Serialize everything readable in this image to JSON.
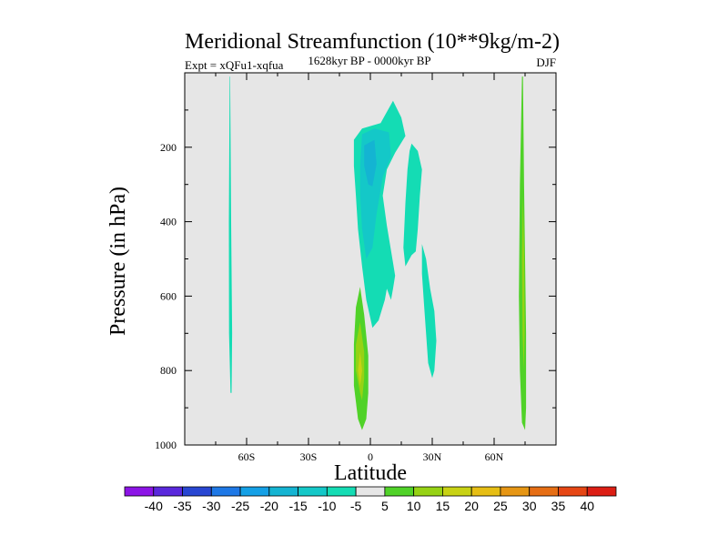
{
  "chart_data": {
    "type": "heatmap",
    "title": "Meridional Streamfunction (10**9kg/m-2)",
    "subtitle_left": "Expt = xQFu1-xqfua",
    "subtitle_center": "1628kyr BP - 0000kyr BP",
    "subtitle_right": "DJF",
    "xlabel": "Latitude",
    "ylabel": "Pressure (in hPa)",
    "xlim": [
      -90,
      90
    ],
    "ylim": [
      1000,
      0
    ],
    "x_ticks": [
      {
        "value": -60,
        "label": "60S"
      },
      {
        "value": -30,
        "label": "30S"
      },
      {
        "value": 0,
        "label": "0"
      },
      {
        "value": 30,
        "label": "30N"
      },
      {
        "value": 60,
        "label": "60N"
      }
    ],
    "y_ticks": [
      {
        "value": 200,
        "label": "200"
      },
      {
        "value": 400,
        "label": "400"
      },
      {
        "value": 600,
        "label": "600"
      },
      {
        "value": 800,
        "label": "800"
      },
      {
        "value": 1000,
        "label": "1000"
      }
    ],
    "background_color": "#e6e6e6",
    "colorbar": {
      "labels": [
        "-40",
        "-35",
        "-30",
        "-25",
        "-20",
        "-15",
        "-10",
        "-5",
        "5",
        "10",
        "15",
        "20",
        "25",
        "30",
        "35",
        "40"
      ],
      "colors": [
        "#8c14e6",
        "#5a28dc",
        "#2846d2",
        "#1e78e6",
        "#14a0e6",
        "#14b4d2",
        "#14c8c8",
        "#14dcb4",
        "#e6e6e6",
        "#50d228",
        "#96d214",
        "#c8d214",
        "#e6be14",
        "#e69614",
        "#e66e14",
        "#e64614",
        "#dc1e14"
      ]
    },
    "regions": [
      {
        "name": "sh-polar-cell",
        "level": "-5",
        "color": "#14dcb4",
        "points": [
          [
            -68,
            10
          ],
          [
            -67.5,
            400
          ],
          [
            -67,
            700
          ],
          [
            -67.3,
            860
          ],
          [
            -67.8,
            860
          ],
          [
            -68.5,
            700
          ],
          [
            -68.6,
            400
          ],
          [
            -68.2,
            10
          ]
        ]
      },
      {
        "name": "tropical-negative-cell",
        "level": "-5",
        "color": "#14dcb4",
        "points": [
          [
            -8,
            180
          ],
          [
            -4,
            150
          ],
          [
            5,
            135
          ],
          [
            11,
            75
          ],
          [
            15,
            120
          ],
          [
            17,
            170
          ],
          [
            12,
            215
          ],
          [
            8,
            260
          ],
          [
            6,
            330
          ],
          [
            8,
            410
          ],
          [
            11,
            510
          ],
          [
            12,
            545
          ],
          [
            11,
            580
          ],
          [
            10,
            610
          ],
          [
            8,
            580
          ],
          [
            7,
            610
          ],
          [
            4,
            665
          ],
          [
            1,
            685
          ],
          [
            -2,
            610
          ],
          [
            -4,
            520
          ],
          [
            -6,
            420
          ],
          [
            -7,
            330
          ],
          [
            -8,
            250
          ]
        ]
      },
      {
        "name": "tropical-core-10",
        "level": "-10",
        "color": "#14c8c8",
        "points": [
          [
            -4,
            165
          ],
          [
            2,
            150
          ],
          [
            9,
            160
          ],
          [
            10,
            225
          ],
          [
            6,
            280
          ],
          [
            3,
            380
          ],
          [
            1,
            470
          ],
          [
            -2,
            500
          ],
          [
            -4,
            420
          ],
          [
            -5,
            330
          ],
          [
            -5,
            250
          ]
        ]
      },
      {
        "name": "tropical-core-15",
        "level": "-15",
        "color": "#14b4d2",
        "points": [
          [
            -3,
            195
          ],
          [
            2,
            180
          ],
          [
            3,
            245
          ],
          [
            1,
            305
          ],
          [
            -1,
            300
          ],
          [
            -3,
            250
          ]
        ]
      },
      {
        "name": "nh-subtropical-cell",
        "level": "-5",
        "color": "#14dcb4",
        "points": [
          [
            20,
            190
          ],
          [
            23,
            210
          ],
          [
            25,
            260
          ],
          [
            24,
            330
          ],
          [
            23,
            420
          ],
          [
            22,
            480
          ],
          [
            20,
            490
          ],
          [
            17,
            520
          ],
          [
            16,
            470
          ],
          [
            17,
            350
          ],
          [
            18,
            260
          ],
          [
            19,
            210
          ]
        ]
      },
      {
        "name": "nh-lower-cell",
        "level": "-5",
        "color": "#14dcb4",
        "points": [
          [
            25,
            460
          ],
          [
            27,
            500
          ],
          [
            29,
            580
          ],
          [
            31,
            640
          ],
          [
            32,
            720
          ],
          [
            31,
            800
          ],
          [
            30,
            820
          ],
          [
            28,
            780
          ],
          [
            27,
            700
          ],
          [
            26,
            620
          ],
          [
            25,
            540
          ]
        ]
      },
      {
        "name": "tropical-positive-cell",
        "level": "5",
        "color": "#50d228",
        "points": [
          [
            -5,
            575
          ],
          [
            -3,
            650
          ],
          [
            -1,
            760
          ],
          [
            -1,
            860
          ],
          [
            -2,
            930
          ],
          [
            -4,
            960
          ],
          [
            -6,
            930
          ],
          [
            -8,
            840
          ],
          [
            -8,
            730
          ],
          [
            -7,
            630
          ]
        ]
      },
      {
        "name": "tropical-positive-core-10",
        "level": "10",
        "color": "#96d214",
        "points": [
          [
            -5,
            670
          ],
          [
            -3,
            750
          ],
          [
            -3,
            820
          ],
          [
            -4,
            880
          ],
          [
            -5,
            860
          ],
          [
            -7,
            800
          ],
          [
            -7,
            730
          ]
        ]
      },
      {
        "name": "tropical-positive-core-15",
        "level": "15",
        "color": "#c8d214",
        "points": [
          [
            -5,
            750
          ],
          [
            -4,
            800
          ],
          [
            -5,
            840
          ],
          [
            -6,
            800
          ]
        ]
      },
      {
        "name": "nh-polar-cell",
        "level": "5",
        "color": "#50d228",
        "points": [
          [
            74,
            10
          ],
          [
            74.5,
            300
          ],
          [
            75,
            500
          ],
          [
            75.5,
            700
          ],
          [
            75.5,
            900
          ],
          [
            75,
            960
          ],
          [
            73.5,
            940
          ],
          [
            72.5,
            800
          ],
          [
            72,
            600
          ],
          [
            72.5,
            300
          ],
          [
            73.5,
            10
          ]
        ]
      },
      {
        "name": "nh-polar-core-10",
        "level": "10",
        "color": "#96d214",
        "points": [
          [
            74,
            330
          ],
          [
            74.6,
            500
          ],
          [
            74.8,
            700
          ],
          [
            74.4,
            800
          ],
          [
            73.8,
            700
          ],
          [
            73.5,
            500
          ]
        ]
      }
    ]
  }
}
